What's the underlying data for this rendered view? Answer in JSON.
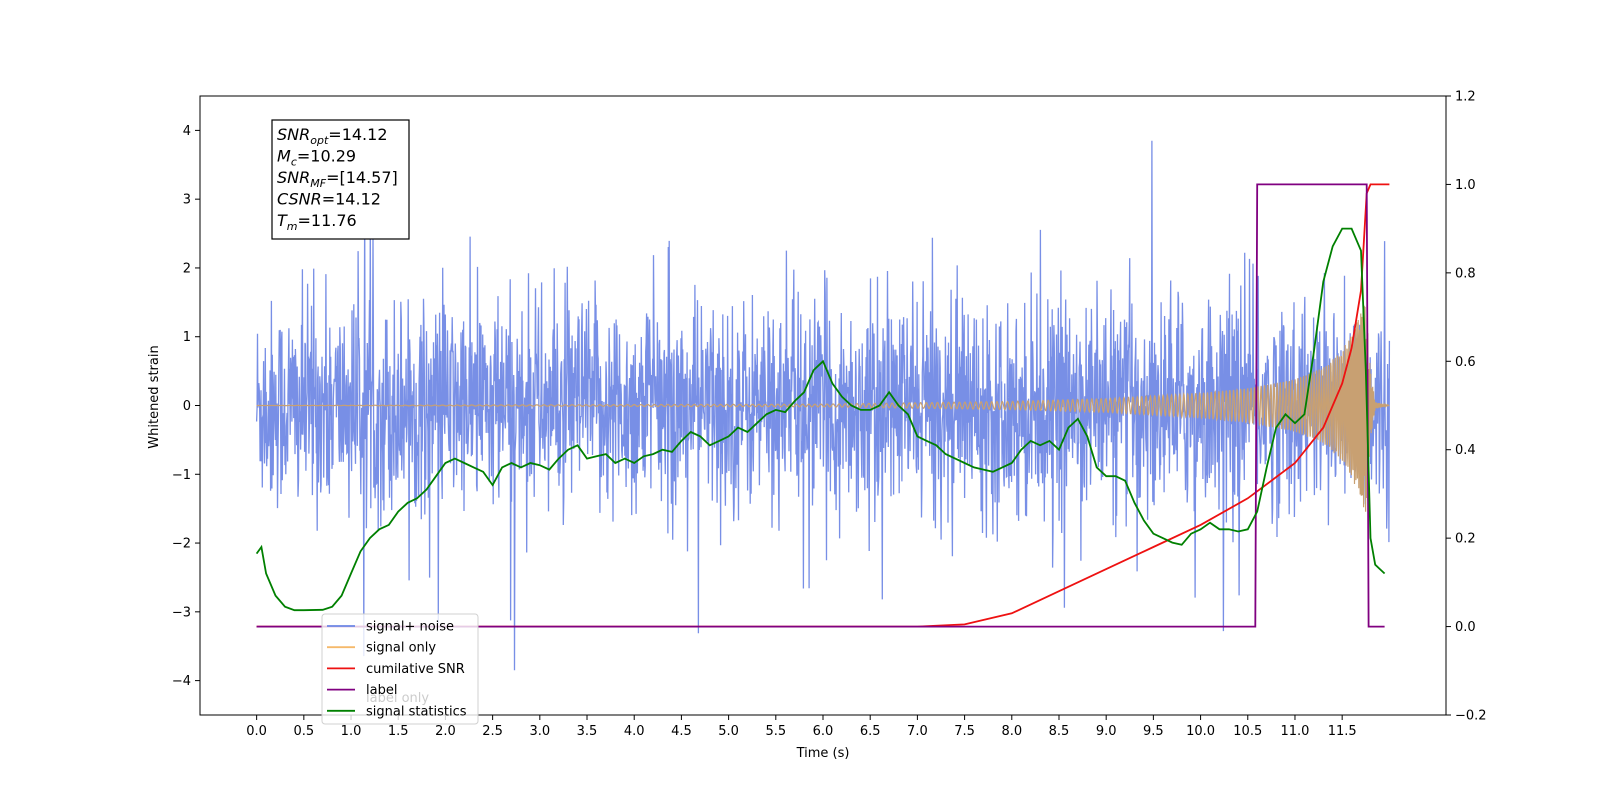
{
  "chart_data": {
    "type": "line",
    "xlabel": "Time (s)",
    "ylabel": "Whitened strain",
    "xlim": [
      -0.6,
      12.6
    ],
    "ylim": [
      -4.5,
      4.5
    ],
    "y2lim": [
      -0.2,
      1.2
    ],
    "grid": false,
    "legend_position": "bottom-left",
    "x_ticks": [
      0.0,
      0.5,
      1.0,
      1.5,
      2.0,
      2.5,
      3.0,
      3.5,
      4.0,
      4.5,
      5.0,
      5.5,
      6.0,
      6.5,
      7.0,
      7.5,
      8.0,
      8.5,
      9.0,
      9.5,
      10.0,
      10.5,
      11.0,
      11.5
    ],
    "x_tick_labels": [
      "0.0",
      "0.5",
      "1.0",
      "1.5",
      "2.0",
      "2.5",
      "3.0",
      "3.5",
      "4.0",
      "4.5",
      "5.0",
      "5.5",
      "6.0",
      "6.5",
      "7.0",
      "7.5",
      "8.0",
      "8.5",
      "9.0",
      "9.5",
      "10.0",
      "10.5",
      "11.0",
      "11.5"
    ],
    "y_ticks": [
      -4,
      -3,
      -2,
      -1,
      0,
      1,
      2,
      3,
      4
    ],
    "y_tick_labels": [
      "−4",
      "−3",
      "−2",
      "−1",
      "0",
      "1",
      "2",
      "3",
      "4"
    ],
    "y2_ticks": [
      -0.2,
      0.0,
      0.2,
      0.4,
      0.6,
      0.8,
      1.0,
      1.2
    ],
    "y2_tick_labels": [
      "−0.2",
      "0.0",
      "0.2",
      "0.4",
      "0.6",
      "0.8",
      "1.0",
      "1.2"
    ],
    "series": [
      {
        "name": "signal+ noise",
        "axis": "left",
        "color": "#6c86e4",
        "note": "dense noise, envelope approx ±2 with spikes to ±3.8",
        "x": [
          0.0,
          12.0
        ],
        "envelope": [
          -2.0,
          2.0
        ]
      },
      {
        "name": "signal only",
        "axis": "left",
        "color": "#f5b96a",
        "note": "chirp amplitude envelope",
        "x": [
          0.0,
          6.0,
          8.0,
          9.0,
          10.0,
          10.5,
          11.0,
          11.3,
          11.5,
          11.6,
          11.7,
          11.75,
          11.8,
          11.85,
          12.0
        ],
        "amplitude": [
          0.0,
          0.02,
          0.06,
          0.1,
          0.18,
          0.25,
          0.38,
          0.55,
          0.8,
          1.05,
          1.35,
          1.6,
          0.5,
          0.05,
          0.0
        ]
      },
      {
        "name": "cumilative SNR",
        "axis": "right",
        "color": "#ee1111",
        "x": [
          0.0,
          7.0,
          7.5,
          8.0,
          8.5,
          9.0,
          9.5,
          10.0,
          10.5,
          11.0,
          11.3,
          11.5,
          11.6,
          11.7,
          11.76,
          11.8,
          12.0
        ],
        "values": [
          0.0,
          0.0,
          0.005,
          0.03,
          0.08,
          0.13,
          0.18,
          0.23,
          0.29,
          0.37,
          0.45,
          0.55,
          0.63,
          0.76,
          0.98,
          1.0,
          1.0
        ]
      },
      {
        "name": "label",
        "axis": "right",
        "color": "#800080",
        "x": [
          0.0,
          10.58,
          10.6,
          11.76,
          11.78,
          11.95
        ],
        "values": [
          0.0,
          0.0,
          1.0,
          1.0,
          0.0,
          0.0
        ]
      },
      {
        "name": "signal statistics",
        "axis": "right",
        "color": "#008000",
        "x": [
          0.0,
          0.05,
          0.1,
          0.2,
          0.3,
          0.4,
          0.5,
          0.7,
          0.8,
          0.9,
          1.0,
          1.1,
          1.2,
          1.3,
          1.4,
          1.5,
          1.6,
          1.7,
          1.8,
          1.9,
          2.0,
          2.1,
          2.2,
          2.3,
          2.4,
          2.5,
          2.6,
          2.7,
          2.8,
          2.9,
          3.0,
          3.1,
          3.2,
          3.3,
          3.4,
          3.5,
          3.6,
          3.7,
          3.8,
          3.9,
          4.0,
          4.1,
          4.2,
          4.3,
          4.4,
          4.5,
          4.6,
          4.7,
          4.8,
          4.9,
          5.0,
          5.1,
          5.2,
          5.3,
          5.4,
          5.5,
          5.6,
          5.7,
          5.8,
          5.9,
          6.0,
          6.1,
          6.2,
          6.3,
          6.4,
          6.5,
          6.6,
          6.7,
          6.8,
          6.9,
          7.0,
          7.1,
          7.2,
          7.3,
          7.4,
          7.5,
          7.6,
          7.7,
          7.8,
          7.9,
          8.0,
          8.1,
          8.2,
          8.3,
          8.4,
          8.5,
          8.6,
          8.7,
          8.8,
          8.9,
          9.0,
          9.1,
          9.2,
          9.3,
          9.4,
          9.5,
          9.6,
          9.7,
          9.8,
          9.9,
          10.0,
          10.1,
          10.2,
          10.3,
          10.4,
          10.5,
          10.6,
          10.7,
          10.8,
          10.9,
          11.0,
          11.1,
          11.2,
          11.3,
          11.4,
          11.5,
          11.6,
          11.7,
          11.75,
          11.8,
          11.85,
          11.9,
          11.95
        ],
        "values": [
          0.165,
          0.18,
          0.12,
          0.07,
          0.045,
          0.037,
          0.037,
          0.038,
          0.045,
          0.07,
          0.12,
          0.17,
          0.2,
          0.22,
          0.23,
          0.26,
          0.28,
          0.29,
          0.31,
          0.34,
          0.37,
          0.38,
          0.37,
          0.36,
          0.35,
          0.32,
          0.36,
          0.37,
          0.36,
          0.37,
          0.365,
          0.355,
          0.38,
          0.4,
          0.41,
          0.38,
          0.385,
          0.39,
          0.37,
          0.38,
          0.37,
          0.385,
          0.39,
          0.4,
          0.395,
          0.42,
          0.44,
          0.43,
          0.41,
          0.42,
          0.43,
          0.45,
          0.44,
          0.46,
          0.48,
          0.49,
          0.485,
          0.51,
          0.53,
          0.58,
          0.6,
          0.55,
          0.52,
          0.5,
          0.49,
          0.49,
          0.5,
          0.53,
          0.5,
          0.48,
          0.43,
          0.42,
          0.41,
          0.39,
          0.38,
          0.37,
          0.36,
          0.355,
          0.35,
          0.36,
          0.37,
          0.4,
          0.42,
          0.41,
          0.42,
          0.4,
          0.45,
          0.47,
          0.43,
          0.36,
          0.34,
          0.34,
          0.33,
          0.28,
          0.24,
          0.21,
          0.2,
          0.19,
          0.185,
          0.21,
          0.22,
          0.235,
          0.22,
          0.22,
          0.215,
          0.22,
          0.26,
          0.36,
          0.45,
          0.48,
          0.46,
          0.48,
          0.62,
          0.78,
          0.86,
          0.9,
          0.9,
          0.85,
          0.58,
          0.2,
          0.14,
          0.13,
          0.12
        ]
      }
    ],
    "annotation_lines": [
      {
        "base": "SNR",
        "sub": "opt",
        "value": "=14.12"
      },
      {
        "base": "M",
        "sub": "c",
        "value": "=10.29"
      },
      {
        "base": "SNR",
        "sub": "MF",
        "value": "=[14.57]"
      },
      {
        "base": "CSNR",
        "sub": "",
        "value": "=14.12"
      },
      {
        "base": "T",
        "sub": "m",
        "value": "=11.76"
      }
    ],
    "legend_entries": [
      {
        "label": "signal+ noise",
        "color": "#6c86e4"
      },
      {
        "label": "signal only",
        "color": "#f5b96a"
      },
      {
        "label": "cumilative SNR",
        "color": "#ee1111"
      },
      {
        "label": "label",
        "color": "#800080"
      },
      {
        "label": "signal statistics",
        "color": "#008000"
      }
    ],
    "hidden_legend_fragment": "label only"
  }
}
